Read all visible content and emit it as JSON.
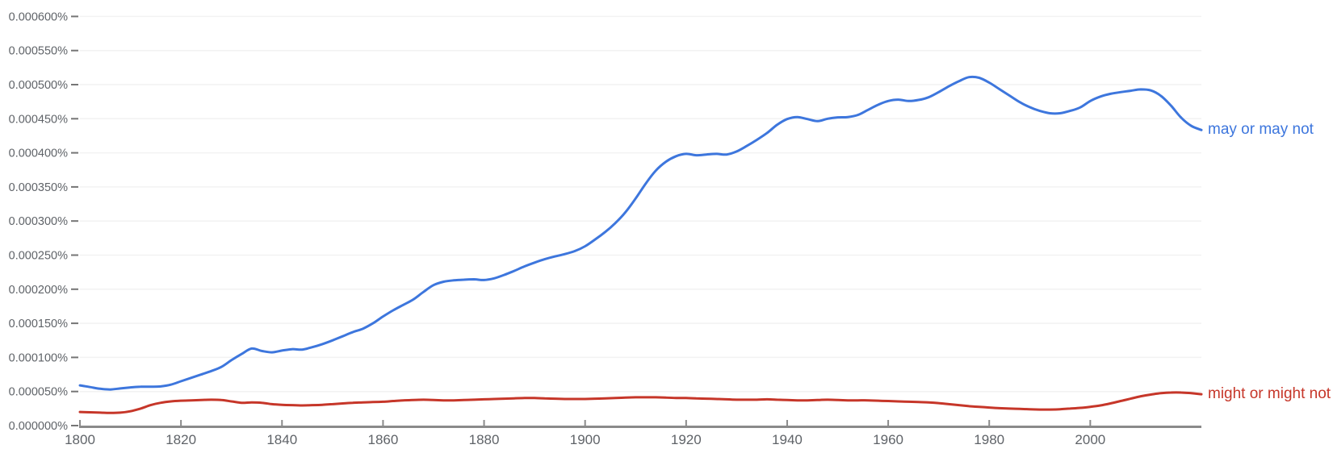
{
  "chart_data": {
    "type": "line",
    "title": "",
    "xlabel": "",
    "ylabel": "",
    "grid": true,
    "legend_position": "right-of-line-end",
    "x_axis": {
      "tick_values": [
        1800,
        1820,
        1840,
        1860,
        1880,
        1900,
        1920,
        1940,
        1960,
        1980,
        2000
      ],
      "tick_labels": [
        "1800",
        "1820",
        "1840",
        "1860",
        "1880",
        "1900",
        "1920",
        "1940",
        "1960",
        "1980",
        "2000"
      ]
    },
    "y_axis": {
      "tick_values": [
        0,
        50,
        100,
        150,
        200,
        250,
        300,
        350,
        400,
        450,
        500,
        550,
        600
      ],
      "tick_labels": [
        "0.000000%",
        "0.000050%",
        "0.000100%",
        "0.000150%",
        "0.000200%",
        "0.000250%",
        "0.000300%",
        "0.000350%",
        "0.000400%",
        "0.000450%",
        "0.000500%",
        "0.000550%",
        "0.000600%"
      ],
      "max_units": 600
    },
    "value_unit_note": "values are millionths of a percent: 59 = 0.000059% of corpus",
    "x_start": 1800,
    "x_step": 2,
    "x_end": 2022,
    "series": [
      {
        "name": "may or may not",
        "color": "#3d76dd",
        "values": [
          59,
          56.5,
          54,
          53,
          54.5,
          56,
          57,
          57,
          57.5,
          60,
          65,
          70,
          75,
          80,
          86,
          96,
          105,
          113,
          109.5,
          107.5,
          110,
          112,
          111.5,
          115,
          119.5,
          125,
          131,
          137,
          142,
          150,
          160,
          169,
          177,
          185,
          196,
          206,
          211,
          213,
          214,
          214.5,
          213.5,
          216,
          221,
          227,
          233.5,
          239,
          244,
          248,
          251.5,
          256,
          263,
          273,
          284,
          297,
          313,
          333,
          355,
          374,
          387,
          395,
          398.5,
          396.5,
          397.5,
          398.5,
          397.5,
          402,
          410,
          419,
          429,
          441,
          449.5,
          452.5,
          449.5,
          446.5,
          450,
          452,
          452.5,
          455.5,
          463,
          470.5,
          476,
          478,
          476,
          477.5,
          481.5,
          489,
          497.5,
          505,
          511,
          510,
          503,
          493.5,
          484,
          474.5,
          467,
          461.5,
          458,
          458,
          461.5,
          466.5,
          476,
          482.5,
          486.5,
          489,
          491,
          493,
          491.5,
          483.5,
          469,
          451.5,
          439.5,
          433.5
        ]
      },
      {
        "name": "might or might not",
        "color": "#c63629",
        "values": [
          20,
          19.5,
          19,
          18.5,
          19,
          21,
          25,
          30,
          33.5,
          35.5,
          36.5,
          37,
          37.5,
          38,
          37.5,
          35.5,
          33.5,
          34,
          33.5,
          31.5,
          30.5,
          30,
          29.5,
          30,
          30.5,
          31.5,
          32.5,
          33.5,
          34,
          34.5,
          35,
          36,
          37,
          37.5,
          38,
          37.5,
          37,
          37,
          37.5,
          38,
          38.5,
          39,
          39.5,
          40,
          40.5,
          40.5,
          40,
          39.5,
          39,
          39,
          39,
          39.5,
          40,
          40.5,
          41,
          41.5,
          41.5,
          41.5,
          41,
          40.5,
          40.5,
          40,
          39.5,
          39,
          38.5,
          38,
          38,
          38,
          38.5,
          38,
          37.5,
          37,
          37,
          37.5,
          38,
          37.5,
          37,
          37,
          37,
          36.5,
          36,
          35.5,
          35,
          34.5,
          34,
          33,
          31.5,
          30,
          28.5,
          27.5,
          26.5,
          25.5,
          25,
          24.5,
          24,
          23.5,
          23.5,
          24,
          25,
          26,
          27.5,
          29.5,
          32.5,
          36,
          39.5,
          43,
          45.5,
          47.5,
          48.5,
          48.5,
          47.5,
          46
        ]
      }
    ],
    "colors": {
      "gridline": "#f2f2f2",
      "axis": "#8a8a8a",
      "tick_text": "#5f6368",
      "y_dash": "#757575",
      "background": "#ffffff"
    }
  }
}
